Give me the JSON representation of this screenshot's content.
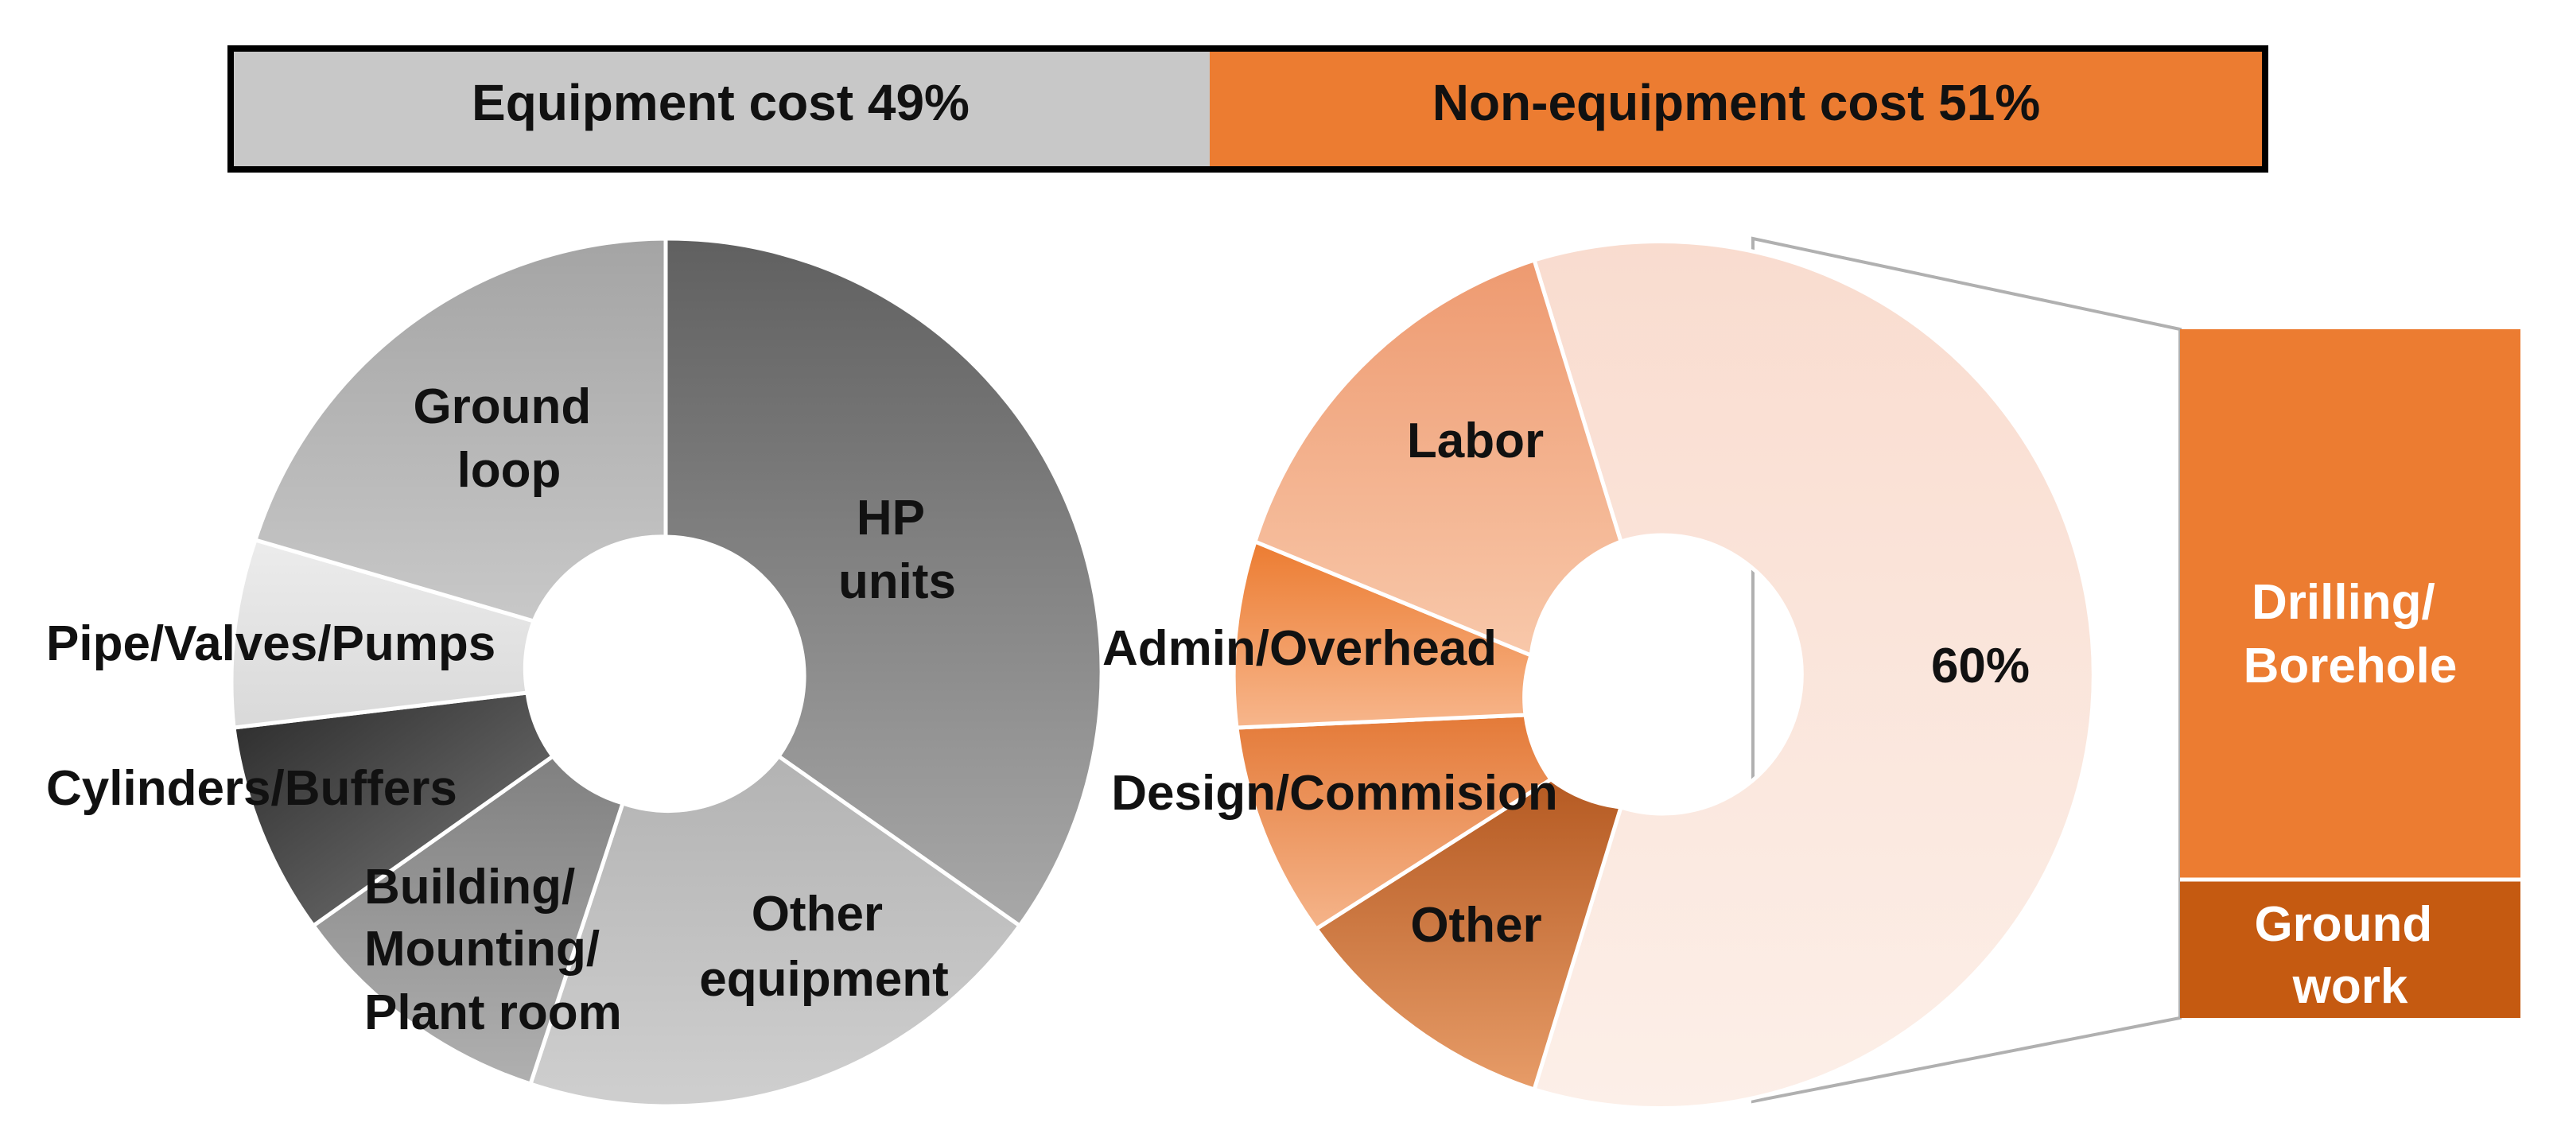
{
  "chart_data": [
    {
      "type": "bar",
      "subtype": "stacked-horizontal",
      "categories": [
        "Equipment cost",
        "Non-equipment cost"
      ],
      "values": [
        49,
        51
      ],
      "labels": [
        "Equipment cost 49%",
        "Non-equipment cost 51%"
      ],
      "colors": [
        "#c8c8c8",
        "#ec7c31"
      ]
    },
    {
      "type": "pie",
      "subtype": "donut",
      "categories": [
        "HP units",
        "Other equipment",
        "Building/ Mounting/ Plant room",
        "Cylinders/Buffers",
        "Pipe/Valves/Pumps",
        "Ground loop"
      ],
      "values": [
        37,
        22,
        10,
        8,
        7,
        16
      ],
      "labels": [
        [
          "HP",
          "units"
        ],
        [
          "Other",
          "equipment"
        ],
        [
          "Building/",
          "Mounting/",
          "Plant room"
        ],
        [
          "Cylinders/Buffers"
        ],
        [
          "Pipe/Valves/Pumps"
        ],
        [
          "Ground",
          "loop"
        ]
      ],
      "colors": [
        "#808080",
        "#c0c0c0",
        "#9a9a9a",
        "#4a4a4a",
        "#e6e6e6",
        "#b4b4b4"
      ]
    },
    {
      "type": "pie",
      "subtype": "donut",
      "categories": [
        "Drilling/Ground work",
        "Other",
        "Design/Commision",
        "Admin/Overhead",
        "Labor"
      ],
      "values": [
        60,
        11,
        8,
        6,
        15
      ],
      "labels": [
        [
          "60%"
        ],
        [
          "Other"
        ],
        [
          "Design/Commision"
        ],
        [
          "Admin/Overhead"
        ],
        [
          "Labor"
        ]
      ],
      "colors": [
        "#fae4dc",
        "#d98a55",
        "#ee9c68",
        "#f19a5a",
        "#f2ac88"
      ]
    },
    {
      "type": "bar",
      "subtype": "stacked-vertical",
      "categories": [
        "Drilling/Borehole",
        "Ground work"
      ],
      "values": [
        80,
        20
      ],
      "labels": [
        [
          "Drilling/",
          "Borehole"
        ],
        [
          "Ground",
          "work"
        ]
      ],
      "colors": [
        "#ec7c31",
        "#c55a11"
      ]
    }
  ]
}
